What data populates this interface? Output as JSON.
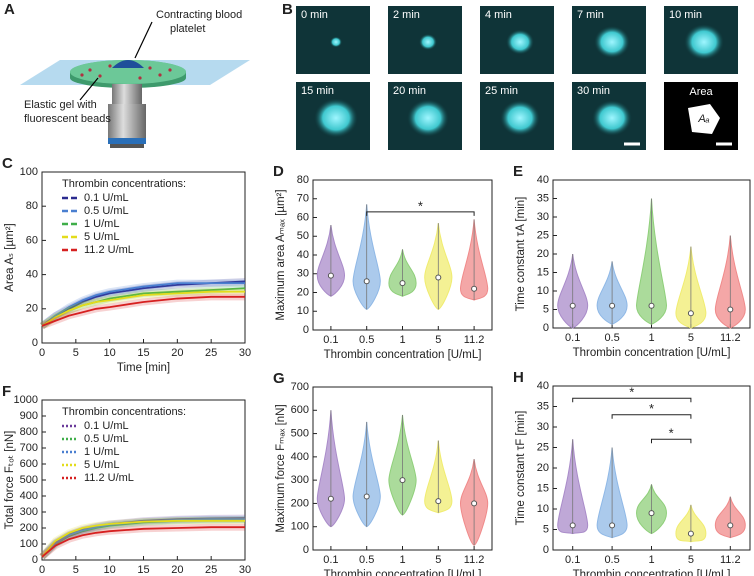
{
  "diagram": {
    "panel": "A",
    "platelet_label": [
      "Contracting blood",
      "platelet"
    ],
    "gel_label": [
      "Elastic gel with",
      "fluorescent beads"
    ]
  },
  "images": {
    "panel": "B",
    "frames": [
      "0 min",
      "2 min",
      "4 min",
      "7 min",
      "10 min",
      "15 min",
      "20 min",
      "25 min",
      "30 min"
    ],
    "area_label": "Area",
    "area_symbol": "Aₐ"
  },
  "chart_data": [
    {
      "type": "line",
      "panel": "C",
      "x_label": "Time [min]",
      "y_label": "Area Aₛ [µm²]",
      "legend_title": "Thrombin concentrations:",
      "line_style": "dashed",
      "x": [
        0,
        2,
        4,
        6,
        8,
        10,
        15,
        20,
        25,
        30
      ],
      "xlim": [
        0,
        30
      ],
      "xticks": [
        0,
        5,
        10,
        15,
        20,
        25,
        30
      ],
      "ylim": [
        0,
        100
      ],
      "yticks": [
        0,
        20,
        40,
        60,
        80,
        100
      ],
      "series": [
        {
          "name": "0.1 U/mL",
          "color": "#2b2b8f",
          "values": [
            10,
            16,
            20,
            24,
            27,
            29,
            32,
            34,
            35,
            36
          ]
        },
        {
          "name": "0.5 U/mL",
          "color": "#4a7fd0",
          "values": [
            10,
            16,
            21,
            25,
            28,
            30,
            33,
            35,
            35,
            35
          ]
        },
        {
          "name": "1 U/mL",
          "color": "#3fae49",
          "values": [
            10,
            15,
            19,
            22,
            24,
            26,
            29,
            30,
            31,
            32
          ]
        },
        {
          "name": "5 U/mL",
          "color": "#e3dc1c",
          "values": [
            10,
            15,
            19,
            22,
            24,
            25,
            28,
            29,
            30,
            30
          ]
        },
        {
          "name": "11.2 U/mL",
          "color": "#d62020",
          "values": [
            10,
            13,
            16,
            18,
            20,
            21,
            24,
            26,
            27,
            27
          ]
        }
      ]
    },
    {
      "type": "violin",
      "panel": "D",
      "x_label": "Thrombin concentration [U/mL]",
      "y_label": "Maximum area Aₘₐₓ [µm²]",
      "categories": [
        "0.1",
        "0.5",
        "1",
        "5",
        "11.2"
      ],
      "colors": [
        "#a98bc9",
        "#8fb8e6",
        "#8fcf7a",
        "#f0ec70",
        "#f08a8a"
      ],
      "values": [
        29,
        26,
        25,
        28,
        22
      ],
      "ranges": [
        [
          18,
          56
        ],
        [
          11,
          67
        ],
        [
          18,
          43
        ],
        [
          11,
          57
        ],
        [
          16,
          59
        ]
      ],
      "ylim": [
        0,
        80
      ],
      "yticks": [
        0,
        10,
        20,
        30,
        40,
        50,
        60,
        70,
        80
      ],
      "brackets": [
        {
          "between": [
            "0.5",
            "11.2"
          ],
          "y": 63,
          "label": "*"
        }
      ]
    },
    {
      "type": "violin",
      "panel": "E",
      "x_label": "Thrombin concentration [U/mL]",
      "y_label": "Time constant τA [min]",
      "categories": [
        "0.1",
        "0.5",
        "1",
        "5",
        "11.2"
      ],
      "colors": [
        "#a98bc9",
        "#8fb8e6",
        "#8fcf7a",
        "#f0ec70",
        "#f08a8a"
      ],
      "values": [
        6,
        6,
        6,
        4,
        5
      ],
      "ranges": [
        [
          0,
          20
        ],
        [
          1,
          18
        ],
        [
          1,
          35
        ],
        [
          0,
          22
        ],
        [
          0,
          25
        ]
      ],
      "ylim": [
        0,
        40
      ],
      "yticks": [
        0,
        5,
        10,
        15,
        20,
        25,
        30,
        35,
        40
      ],
      "brackets": []
    },
    {
      "type": "line",
      "panel": "F",
      "x_label": "Time [min]",
      "y_label": "Total force Fₜₒₜ [nN]",
      "legend_title": "Thrombin concentrations:",
      "line_style": "dotted",
      "x": [
        0,
        2,
        4,
        6,
        8,
        10,
        15,
        20,
        25,
        30
      ],
      "xlim": [
        0,
        30
      ],
      "xticks": [
        0,
        5,
        10,
        15,
        20,
        25,
        30
      ],
      "ylim": [
        0,
        1000
      ],
      "yticks": [
        0,
        100,
        200,
        300,
        400,
        500,
        600,
        700,
        800,
        900,
        1000
      ],
      "series": [
        {
          "name": "0.1 U/mL",
          "color": "#6a3a9a",
          "values": [
            20,
            110,
            160,
            190,
            210,
            225,
            245,
            255,
            260,
            262
          ]
        },
        {
          "name": "0.5 U/mL",
          "color": "#3fae49",
          "values": [
            20,
            100,
            150,
            180,
            200,
            215,
            235,
            245,
            250,
            252
          ]
        },
        {
          "name": "1 U/mL",
          "color": "#4a7fd0",
          "values": [
            20,
            105,
            155,
            185,
            205,
            220,
            240,
            250,
            255,
            255
          ]
        },
        {
          "name": "5 U/mL",
          "color": "#e3dc1c",
          "values": [
            20,
            120,
            170,
            200,
            215,
            225,
            240,
            245,
            245,
            245
          ]
        },
        {
          "name": "11.2 U/mL",
          "color": "#d62020",
          "values": [
            20,
            90,
            130,
            155,
            170,
            180,
            195,
            200,
            205,
            205
          ]
        }
      ]
    },
    {
      "type": "violin",
      "panel": "G",
      "x_label": "Thrombin concentration [U/mL]",
      "y_label": "Maximum force Fₘₐₓ [nN]",
      "categories": [
        "0.1",
        "0.5",
        "1",
        "5",
        "11.2"
      ],
      "colors": [
        "#a98bc9",
        "#8fb8e6",
        "#8fcf7a",
        "#f0ec70",
        "#f08a8a"
      ],
      "values": [
        220,
        230,
        300,
        210,
        200
      ],
      "ranges": [
        [
          100,
          600
        ],
        [
          100,
          550
        ],
        [
          150,
          580
        ],
        [
          160,
          470
        ],
        [
          20,
          390
        ]
      ],
      "ylim": [
        0,
        700
      ],
      "yticks": [
        0,
        100,
        200,
        300,
        400,
        500,
        600,
        700
      ],
      "brackets": []
    },
    {
      "type": "violin",
      "panel": "H",
      "x_label": "Thrombin concentration [U/mL]",
      "y_label": "Time constant τF [min]",
      "categories": [
        "0.1",
        "0.5",
        "1",
        "5",
        "11.2"
      ],
      "colors": [
        "#a98bc9",
        "#8fb8e6",
        "#8fcf7a",
        "#f0ec70",
        "#f08a8a"
      ],
      "values": [
        6,
        6,
        9,
        4,
        6
      ],
      "ranges": [
        [
          4,
          27
        ],
        [
          3,
          25
        ],
        [
          4,
          16
        ],
        [
          2,
          11
        ],
        [
          3,
          13
        ]
      ],
      "ylim": [
        0,
        40
      ],
      "yticks": [
        0,
        5,
        10,
        15,
        20,
        25,
        30,
        35,
        40
      ],
      "brackets": [
        {
          "between": [
            "0.1",
            "5"
          ],
          "y": 37,
          "label": "*"
        },
        {
          "between": [
            "0.5",
            "5"
          ],
          "y": 33,
          "label": "*"
        },
        {
          "between": [
            "1",
            "5"
          ],
          "y": 27,
          "label": "*"
        }
      ]
    }
  ]
}
